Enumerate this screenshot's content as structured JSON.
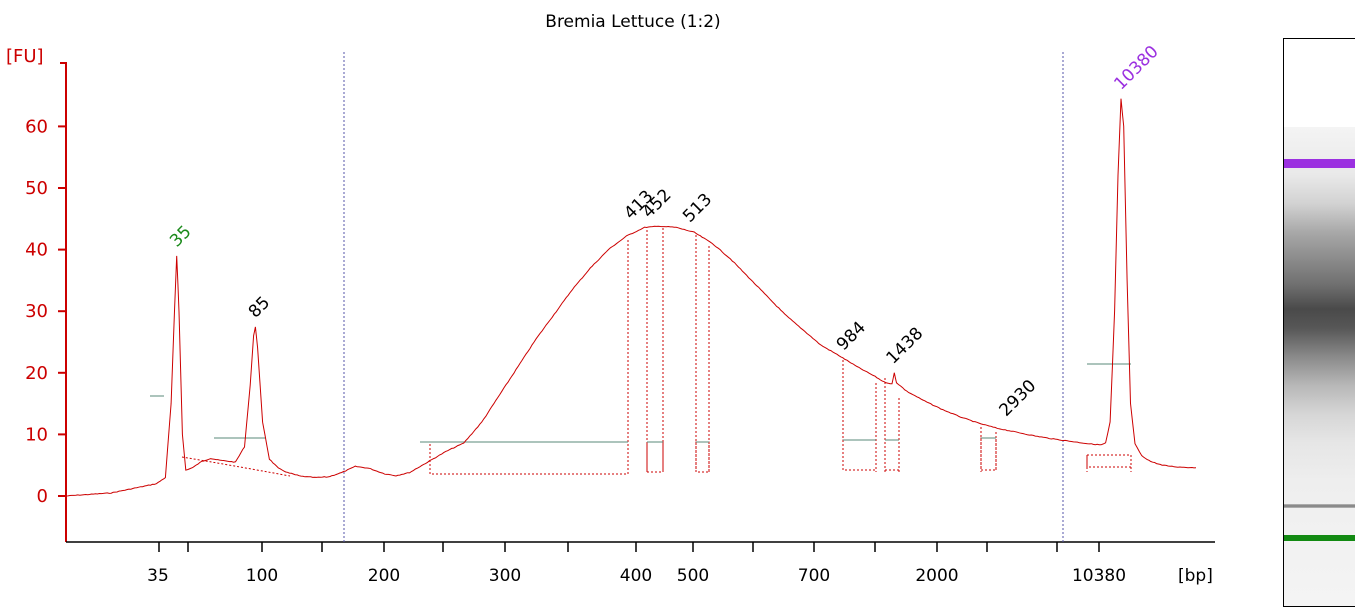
{
  "chart_data": {
    "type": "line",
    "title": "Bremia Lettuce (1:2)",
    "ylabel": "[FU]",
    "xlabel": "[bp]",
    "ylim": [
      -7,
      70
    ],
    "yticks": [
      0,
      10,
      20,
      30,
      40,
      50,
      60
    ],
    "ytick_labels": [
      "0",
      "10",
      "20",
      "30",
      "40",
      "50",
      "60"
    ],
    "x_axis": "bp, non-linear (electropherogram migration)",
    "xtick_labels": [
      "35",
      "100",
      "200",
      "300",
      "400",
      "500",
      "700",
      "2000",
      "10380"
    ],
    "grid": false,
    "series": [
      {
        "points": [
          [
            0,
            0
          ],
          [
            2,
            0.5
          ],
          [
            4,
            2.0
          ],
          [
            4.4,
            3.0
          ],
          [
            4.65,
            15
          ],
          [
            4.8,
            30
          ],
          [
            4.9,
            39
          ],
          [
            5.0,
            30
          ],
          [
            5.15,
            10
          ],
          [
            5.3,
            4.2
          ],
          [
            5.6,
            4.6
          ],
          [
            6.0,
            5.6
          ],
          [
            6.4,
            6.1
          ],
          [
            6.8,
            5.8
          ],
          [
            7.5,
            5.5
          ],
          [
            7.9,
            8
          ],
          [
            8.15,
            18
          ],
          [
            8.3,
            26
          ],
          [
            8.38,
            27.5
          ],
          [
            8.48,
            24
          ],
          [
            8.7,
            12
          ],
          [
            9.0,
            6.0
          ],
          [
            9.4,
            4.5
          ],
          [
            9.8,
            3.8
          ],
          [
            10.4,
            3.2
          ],
          [
            11.0,
            3.0
          ],
          [
            11.6,
            3.1
          ],
          [
            12.2,
            3.8
          ],
          [
            12.8,
            4.8
          ],
          [
            13.4,
            4.5
          ],
          [
            14.1,
            3.6
          ],
          [
            14.6,
            3.3
          ],
          [
            15.2,
            3.8
          ],
          [
            16.0,
            5.5
          ],
          [
            16.8,
            7.2
          ],
          [
            17.6,
            8.6
          ],
          [
            18.4,
            12
          ],
          [
            19.2,
            16.5
          ],
          [
            20.0,
            21
          ],
          [
            20.8,
            25.5
          ],
          [
            21.6,
            29.5
          ],
          [
            22.4,
            33.5
          ],
          [
            23.2,
            37
          ],
          [
            24.0,
            40
          ],
          [
            24.8,
            42.2
          ],
          [
            25.6,
            43.6
          ],
          [
            26.3,
            43.8
          ],
          [
            27.0,
            43.6
          ],
          [
            27.8,
            42.8
          ],
          [
            28.6,
            41
          ],
          [
            29.4,
            38.5
          ],
          [
            30.2,
            35.5
          ],
          [
            31.0,
            32.5
          ],
          [
            31.8,
            29.5
          ],
          [
            32.6,
            27
          ],
          [
            33.4,
            24.5
          ],
          [
            34.2,
            22.8
          ],
          [
            35.0,
            21
          ],
          [
            35.8,
            19.4
          ],
          [
            36.2,
            18.5
          ],
          [
            36.55,
            18.2
          ],
          [
            36.65,
            20
          ],
          [
            36.75,
            18.4
          ],
          [
            37.2,
            17
          ],
          [
            38.0,
            15.4
          ],
          [
            38.8,
            14
          ],
          [
            39.6,
            12.8
          ],
          [
            40.4,
            11.8
          ],
          [
            41.2,
            11
          ],
          [
            42.0,
            10.4
          ],
          [
            42.8,
            9.8
          ],
          [
            43.6,
            9.3
          ],
          [
            44.4,
            8.9
          ],
          [
            45.2,
            8.5
          ],
          [
            45.8,
            8.3
          ],
          [
            46.0,
            8.6
          ],
          [
            46.2,
            12
          ],
          [
            46.4,
            30
          ],
          [
            46.55,
            52
          ],
          [
            46.68,
            64.5
          ],
          [
            46.8,
            60
          ],
          [
            46.95,
            35
          ],
          [
            47.1,
            15
          ],
          [
            47.3,
            8.5
          ],
          [
            47.6,
            6.5
          ],
          [
            48.0,
            5.6
          ],
          [
            48.5,
            5.0
          ],
          [
            49.2,
            4.7
          ],
          [
            50.0,
            4.6
          ]
        ]
      }
    ],
    "peaks": [
      {
        "label": "35",
        "x": 4.9,
        "y": 39,
        "color": "#1a8a1a",
        "kind": "lower marker"
      },
      {
        "label": "85",
        "x": 8.38,
        "y": 27.5,
        "color": "#000000"
      },
      {
        "label": "413",
        "x": 25.0,
        "y": 43.5,
        "color": "#000000"
      },
      {
        "label": "452",
        "x": 25.8,
        "y": 43.7,
        "color": "#000000"
      },
      {
        "label": "513",
        "x": 27.6,
        "y": 43.0,
        "color": "#000000"
      },
      {
        "label": "984",
        "x": 34.4,
        "y": 22.2,
        "color": "#000000"
      },
      {
        "label": "1438",
        "x": 36.6,
        "y": 20.0,
        "color": "#000000"
      },
      {
        "label": "2930",
        "x": 41.6,
        "y": 11.5,
        "color": "#000000"
      },
      {
        "label": "10380",
        "x": 46.68,
        "y": 64.5,
        "color": "#9b30e0",
        "kind": "upper marker"
      }
    ],
    "colors": {
      "trace": "#cc0000",
      "axis": "#cc0000",
      "lower_marker": "#1a8a1a",
      "upper_marker": "#9b30e0",
      "region_line": "#5a8a7a"
    }
  },
  "gel": {
    "bands": [
      {
        "name": "upper-marker-band",
        "color": "#9b30e0"
      },
      {
        "name": "lower-marker-band",
        "color": "#128a12"
      }
    ]
  }
}
